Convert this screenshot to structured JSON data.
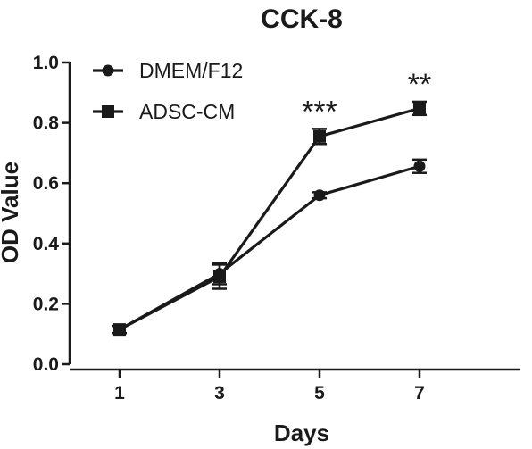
{
  "chart_data": {
    "type": "line",
    "title": "CCK-8",
    "xlabel": "Days",
    "ylabel": "OD Value",
    "x": [
      1,
      3,
      5,
      7
    ],
    "xticks": [
      "1",
      "3",
      "5",
      "7"
    ],
    "xlim": [
      0,
      9
    ],
    "ylim": [
      0,
      1.0
    ],
    "yticks": [
      "0.0",
      "0.2",
      "0.4",
      "0.6",
      "0.8",
      "1.0"
    ],
    "grid": false,
    "legend_position": "top-left",
    "series": [
      {
        "name": "DMEM/F12",
        "marker": "circle",
        "values": [
          0.115,
          0.3,
          0.56,
          0.656
        ],
        "errors": [
          0.012,
          0.035,
          0.01,
          0.022
        ]
      },
      {
        "name": "ADSC-CM",
        "marker": "square",
        "values": [
          0.115,
          0.29,
          0.755,
          0.848
        ],
        "errors": [
          0.012,
          0.04,
          0.025,
          0.022
        ]
      }
    ],
    "annotations": [
      {
        "x": 5,
        "text": "***"
      },
      {
        "x": 7,
        "text": "**"
      }
    ],
    "colors": {
      "line": "#1a1a1a",
      "background": "#ffffff"
    }
  }
}
